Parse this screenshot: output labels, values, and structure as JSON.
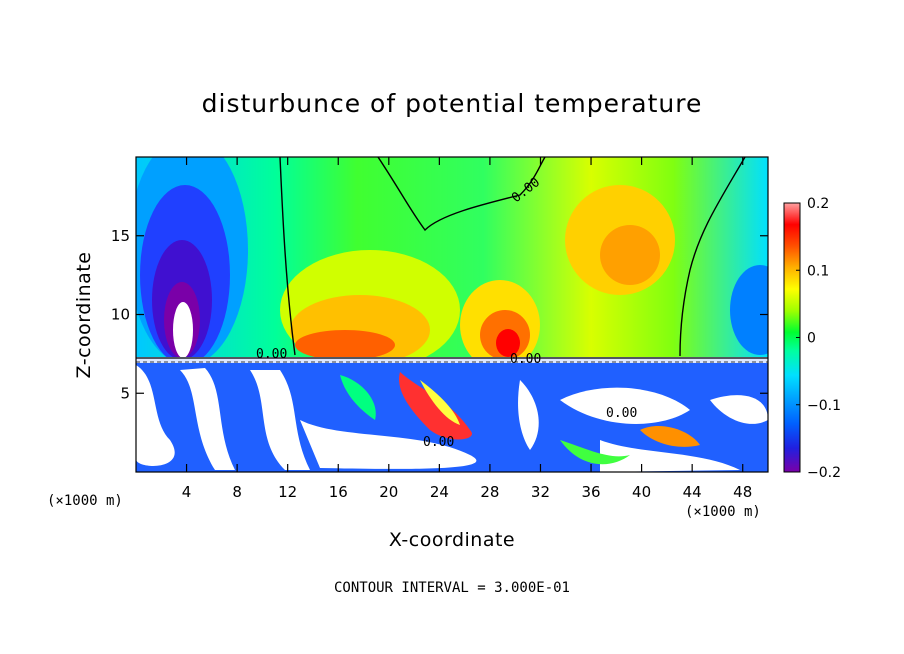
{
  "chart_data": {
    "type": "heatmap",
    "title": "disturbunce of potential temperature",
    "xlabel": "X-coordinate",
    "ylabel": "Z-coordinate",
    "x_unit_left": "(×1000 m)",
    "x_unit_right": "(×1000 m)",
    "xlim": [
      0,
      50
    ],
    "ylim": [
      0,
      20
    ],
    "xticks": [
      4,
      8,
      12,
      16,
      20,
      24,
      28,
      32,
      36,
      40,
      44,
      48
    ],
    "yticks": [
      5,
      10,
      15
    ],
    "colorbar": {
      "range": [
        -0.2,
        0.2
      ],
      "tick_values": [
        0.2,
        0.1,
        0,
        -0.1,
        -0.2
      ],
      "tick_labels": [
        "0.2",
        "0.1",
        "0",
        "−0.1",
        "−0.2"
      ],
      "colors": [
        "#7a00a8",
        "#2020e0",
        "#0080ff",
        "#00d0ff",
        "#00ffc0",
        "#00ff60",
        "#80ff00",
        "#ffff00",
        "#ffc000",
        "#ff6000",
        "#ff0000",
        "#ff9090"
      ]
    },
    "contour_labels": [
      "0.00",
      "0.00",
      "0.00",
      "0.00",
      "0.00"
    ],
    "footer": "CONTOUR INTERVAL = 3.000E-01",
    "grid": false
  }
}
